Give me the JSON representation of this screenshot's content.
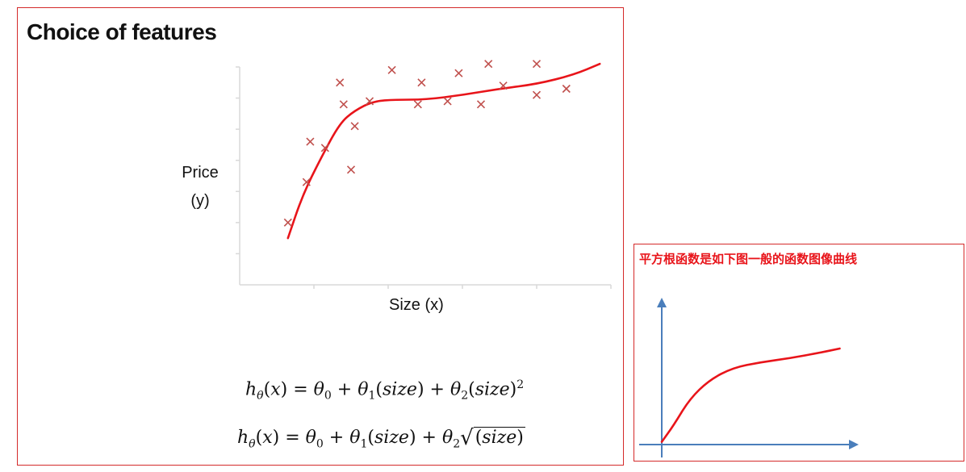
{
  "left": {
    "title": "Choice of features",
    "ylabel_line1": "Price",
    "ylabel_line2": "(y)",
    "xlabel": "Size (x)",
    "formula1": "hθ(x) = θ0 + θ1(size) + θ2(size)^2",
    "formula2": "hθ(x) = θ0 + θ1(size) + θ2√(size)"
  },
  "right": {
    "title": "平方根函数是如下图一般的函数图像曲线"
  },
  "colors": {
    "border": "#d42a2a",
    "curve": "#e8141a",
    "marker": "#c0504d",
    "axis_blue": "#4a7ebb",
    "axis_gray": "#d9d9d9"
  },
  "chart_data": [
    {
      "type": "scatter",
      "title": "",
      "xlabel": "Size (x)",
      "ylabel": "Price (y)",
      "xlim": [
        0,
        10
      ],
      "ylim": [
        0,
        7
      ],
      "grid": false,
      "series": [
        {
          "marker": "x",
          "points": [
            [
              1.3,
              2.0
            ],
            [
              1.8,
              3.3
            ],
            [
              1.9,
              4.6
            ],
            [
              2.3,
              4.4
            ],
            [
              2.7,
              6.5
            ],
            [
              2.8,
              5.8
            ],
            [
              3.0,
              3.7
            ],
            [
              3.1,
              5.1
            ],
            [
              3.5,
              5.9
            ],
            [
              4.1,
              6.9
            ],
            [
              4.8,
              5.8
            ],
            [
              4.9,
              6.5
            ],
            [
              5.6,
              5.9
            ],
            [
              5.9,
              6.8
            ],
            [
              6.5,
              5.8
            ],
            [
              6.7,
              7.1
            ],
            [
              7.1,
              6.4
            ],
            [
              8.0,
              7.1
            ],
            [
              8.0,
              6.1
            ],
            [
              8.8,
              6.3
            ]
          ]
        },
        {
          "type": "line",
          "points": [
            [
              1.3,
              1.5
            ],
            [
              1.7,
              2.9
            ],
            [
              2.2,
              4.1
            ],
            [
              2.7,
              5.2
            ],
            [
              3.1,
              5.6
            ],
            [
              3.6,
              5.9
            ],
            [
              4.2,
              5.95
            ],
            [
              5.0,
              5.95
            ],
            [
              6.0,
              6.1
            ],
            [
              7.0,
              6.3
            ],
            [
              8.0,
              6.45
            ],
            [
              9.0,
              6.75
            ],
            [
              9.7,
              7.1
            ]
          ]
        }
      ]
    },
    {
      "type": "line",
      "title": "平方根函数是如下图一般的函数图像曲线",
      "xlim": [
        0,
        10
      ],
      "ylim": [
        0,
        10
      ],
      "grid": false,
      "series": [
        {
          "points": [
            [
              0.0,
              0.2
            ],
            [
              0.6,
              1.4
            ],
            [
              1.4,
              3.3
            ],
            [
              2.4,
              4.7
            ],
            [
              3.6,
              5.6
            ],
            [
              5.0,
              6.0
            ],
            [
              6.5,
              6.3
            ],
            [
              8.0,
              6.7
            ],
            [
              9.0,
              7.0
            ]
          ]
        }
      ]
    }
  ]
}
